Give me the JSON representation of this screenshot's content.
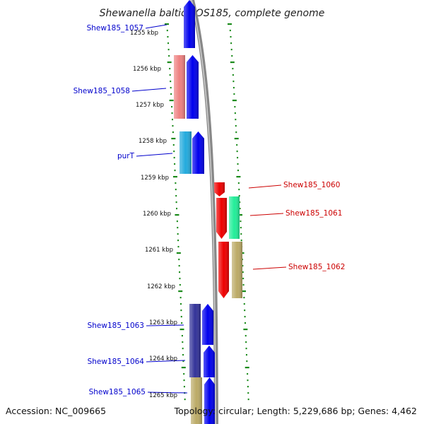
{
  "title": "Shewanella baltica OS185, complete genome",
  "accession": "Accession: NC_009665",
  "topology": "Topology: circular; Length: 5,229,686 bp; Genes: 4,462",
  "colors": {
    "backbone": "#888888",
    "tick": "#1a8a1a",
    "left_label": "#0000cc",
    "right_label": "#cc0000"
  },
  "kbp_labels": [
    "1255 kbp",
    "1256 kbp",
    "1257 kbp",
    "1258 kbp",
    "1259 kbp",
    "1260 kbp",
    "1261 kbp",
    "1262 kbp",
    "1263 kbp",
    "1264 kbp",
    "1265 kbp"
  ],
  "left_gene_labels": [
    "Shew185_1057",
    "Shew185_1058",
    "purT",
    "Shew185_1063",
    "Shew185_1064",
    "Shew185_1065"
  ],
  "right_gene_labels": [
    "Shew185_1060",
    "Shew185_1061",
    "Shew185_1062"
  ],
  "genes": [
    {
      "id": "a1",
      "color": "#0000ee",
      "strand": "+"
    },
    {
      "id": "a2",
      "color": "#ee8080",
      "strand": "none"
    },
    {
      "id": "a3",
      "color": "#0000ee",
      "strand": "+"
    },
    {
      "id": "a4",
      "color": "#22aadd",
      "strand": "none"
    },
    {
      "id": "a5",
      "color": "#0000ee",
      "strand": "+"
    },
    {
      "id": "b1",
      "color": "#ee0000",
      "strand": "-"
    },
    {
      "id": "b2",
      "color": "#ee0000",
      "strand": "-"
    },
    {
      "id": "b3",
      "color": "#22ee99",
      "strand": "none"
    },
    {
      "id": "b4",
      "color": "#ee0000",
      "strand": "-"
    },
    {
      "id": "b5",
      "color": "#bbaa66",
      "strand": "none"
    },
    {
      "id": "c1",
      "color": "#333399",
      "strand": "none"
    },
    {
      "id": "c2",
      "color": "#0000ee",
      "strand": "+"
    },
    {
      "id": "c3",
      "color": "#333399",
      "strand": "none"
    },
    {
      "id": "c4",
      "color": "#0000ee",
      "strand": "+"
    },
    {
      "id": "c5",
      "color": "#bbaa66",
      "strand": "none"
    },
    {
      "id": "c6",
      "color": "#0000ee",
      "strand": "+"
    }
  ]
}
